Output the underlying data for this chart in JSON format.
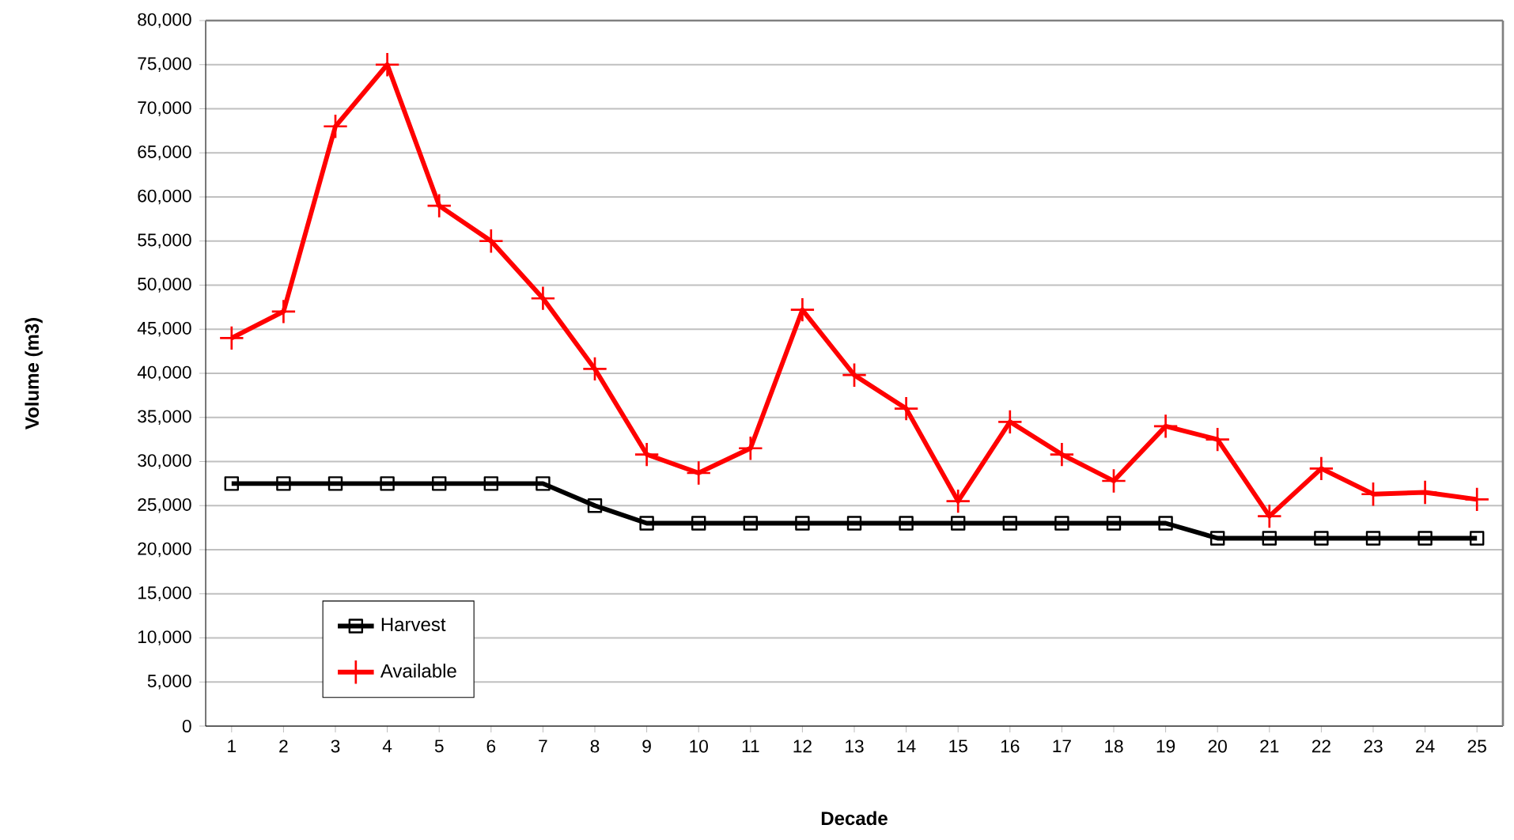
{
  "chart_data": {
    "type": "line",
    "xlabel": "Decade",
    "ylabel": "Volume  (m3)",
    "categories": [
      "1",
      "2",
      "3",
      "4",
      "5",
      "6",
      "7",
      "8",
      "9",
      "10",
      "11",
      "12",
      "13",
      "14",
      "15",
      "16",
      "17",
      "18",
      "19",
      "20",
      "21",
      "22",
      "23",
      "24",
      "25"
    ],
    "series": [
      {
        "name": "Harvest",
        "color": "#000000",
        "marker": "square",
        "values": [
          27500,
          27500,
          27500,
          27500,
          27500,
          27500,
          27500,
          25000,
          23000,
          23000,
          23000,
          23000,
          23000,
          23000,
          23000,
          23000,
          23000,
          23000,
          23000,
          21300,
          21300,
          21300,
          21300,
          21300,
          21300
        ]
      },
      {
        "name": "Available",
        "color": "#ff0000",
        "marker": "cross",
        "values": [
          44000,
          47000,
          68000,
          75000,
          59000,
          55000,
          48500,
          40500,
          30800,
          28700,
          31500,
          47200,
          39800,
          36000,
          25500,
          34500,
          30800,
          27800,
          34000,
          32500,
          23800,
          29200,
          26300,
          26500,
          25700
        ]
      }
    ],
    "ylim": [
      0,
      80000
    ],
    "yticks": [
      {
        "value": 0,
        "label": "0"
      },
      {
        "value": 5000,
        "label": "5,000"
      },
      {
        "value": 10000,
        "label": "10,000"
      },
      {
        "value": 15000,
        "label": "15,000"
      },
      {
        "value": 20000,
        "label": "20,000"
      },
      {
        "value": 25000,
        "label": "25,000"
      },
      {
        "value": 30000,
        "label": "30,000"
      },
      {
        "value": 35000,
        "label": "35,000"
      },
      {
        "value": 40000,
        "label": "40,000"
      },
      {
        "value": 45000,
        "label": "45,000"
      },
      {
        "value": 50000,
        "label": "50,000"
      },
      {
        "value": 55000,
        "label": "55,000"
      },
      {
        "value": 60000,
        "label": "60,000"
      },
      {
        "value": 65000,
        "label": "65,000"
      },
      {
        "value": 70000,
        "label": "70,000"
      },
      {
        "value": 75000,
        "label": "75,000"
      },
      {
        "value": 80000,
        "label": "80,000"
      }
    ],
    "grid": "y",
    "legend": "bottom left",
    "line_style": "solid"
  }
}
